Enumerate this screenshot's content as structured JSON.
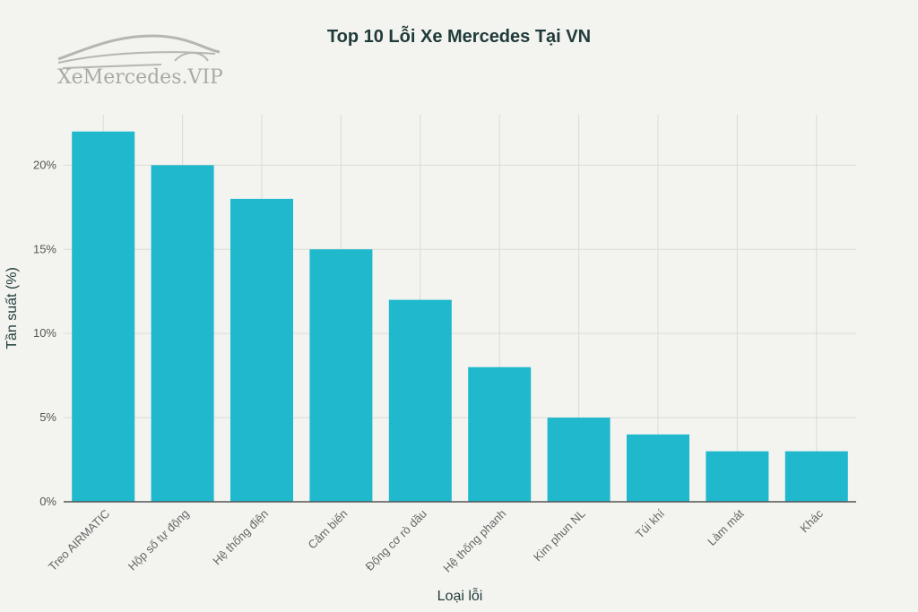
{
  "logo": {
    "text": "XeMercedes.VIP"
  },
  "chart_data": {
    "type": "bar",
    "title": "Top 10 Lỗi Xe Mercedes Tại VN",
    "xlabel": "Loại lỗi",
    "ylabel": "Tần suất (%)",
    "categories": [
      "Treo AIRMATIC",
      "Hộp số tự động",
      "Hệ thống điện",
      "Cảm biến",
      "Động cơ rò dầu",
      "Hệ thống phanh",
      "Kim phun NL",
      "Túi khí",
      "Làm mát",
      "Khác"
    ],
    "values": [
      22,
      20,
      18,
      15,
      12,
      8,
      5,
      4,
      3,
      3
    ],
    "ylim": [
      0,
      23
    ],
    "yticks": [
      0,
      5,
      10,
      15,
      20
    ],
    "ytick_labels": [
      "0%",
      "5%",
      "10%",
      "15%",
      "20%"
    ],
    "grid": true,
    "bar_color": "#1fb8cd"
  }
}
